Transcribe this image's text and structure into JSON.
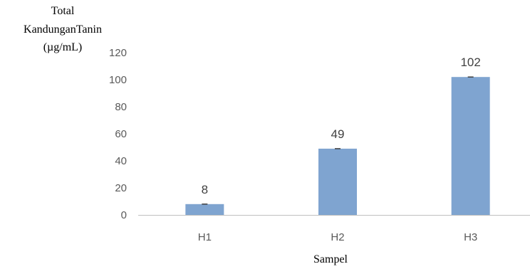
{
  "chart_data": {
    "type": "bar",
    "ylabel_lines": [
      "Total",
      "KandunganTanin",
      "(µg/mL)"
    ],
    "xlabel": "Sampel",
    "categories": [
      "H1",
      "H2",
      "H3"
    ],
    "values": [
      8,
      49,
      102
    ],
    "data_labels": [
      "8",
      "49",
      "102"
    ],
    "ylim": [
      0,
      120
    ],
    "yticks": [
      "0",
      "20",
      "40",
      "60",
      "80",
      "100",
      "120"
    ],
    "grid": false,
    "error_bars": true,
    "bar_color": "#7FA4D0",
    "axis_color": "#BFBFBF"
  }
}
